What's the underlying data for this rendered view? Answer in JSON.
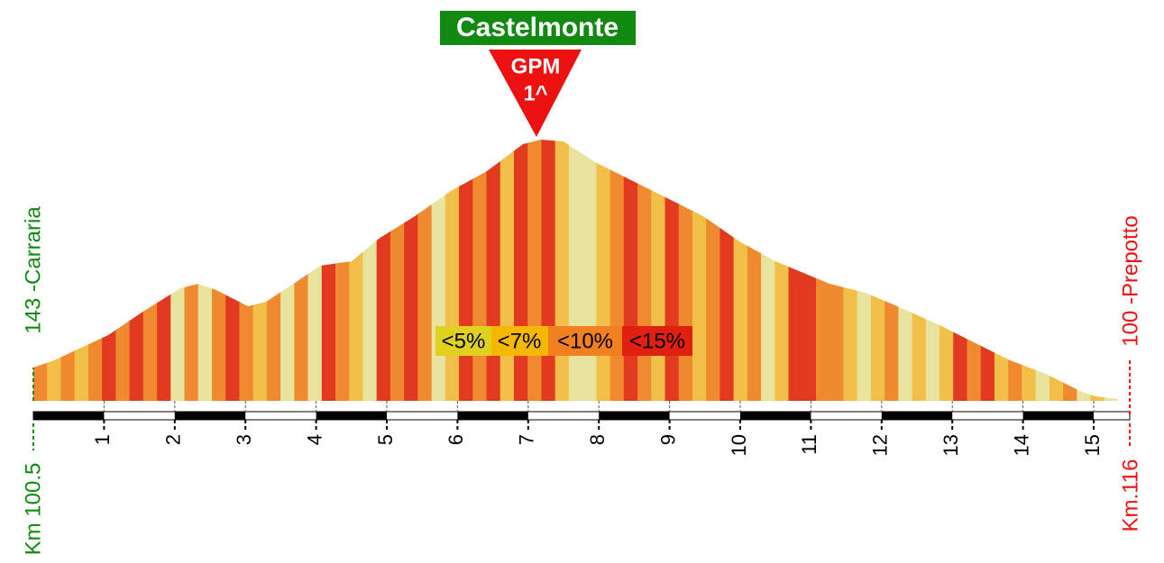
{
  "title": "Castelmonte",
  "gpm": {
    "label": "GPM",
    "category": "1^"
  },
  "start": {
    "place": "143 -Carraria",
    "km": "Km 100.5"
  },
  "finish": {
    "place": "100 -Prepotto",
    "km": "Km.116"
  },
  "km_labels": [
    "1",
    "2",
    "3",
    "4",
    "5",
    "6",
    "7",
    "8",
    "9",
    "10",
    "11",
    "12",
    "13",
    "14",
    "15"
  ],
  "legend": [
    "<5%",
    "<7%",
    "<10%",
    "<15%"
  ]
}
